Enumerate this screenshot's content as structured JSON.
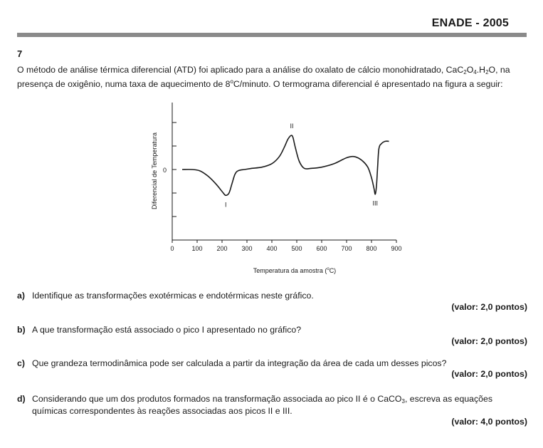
{
  "header": {
    "title": "ENADE - 2005"
  },
  "question": {
    "number": "7",
    "intro_part1": "O método de análise térmica diferencial (ATD) foi aplicado para a análise do oxalato de cálcio monohidratado, CaC",
    "intro_formula_sub1": "2",
    "intro_formula_mid1": "O",
    "intro_formula_sub2": "4",
    "intro_formula_mid2": ".H",
    "intro_formula_sub3": "2",
    "intro_formula_mid3": "O, na",
    "intro_line2_a": "presença de oxigênio, numa taxa de aquecimento de 8",
    "intro_degree": "o",
    "intro_line2_b": "C/minuto. O termograma diferencial é apresentado na figura a seguir:"
  },
  "chart_data": {
    "type": "line",
    "title": "",
    "xlabel_prefix": "Temperatura da amostra (",
    "xlabel_degree": "o",
    "xlabel_suffix": "C)",
    "ylabel": "Diferencial de Temperatura",
    "xlim": [
      0,
      900
    ],
    "x_ticks": [
      "0",
      "100",
      "200",
      "300",
      "400",
      "500",
      "600",
      "700",
      "800",
      "900"
    ],
    "y_zero_label": "0",
    "peak_labels": [
      {
        "label": "I",
        "x": 215,
        "y": -1.1
      },
      {
        "label": "II",
        "x": 480,
        "y": 1.45
      },
      {
        "label": "III",
        "x": 815,
        "y": -1.05
      }
    ],
    "series": [
      {
        "x": [
          40,
          80,
          110,
          140,
          170,
          190,
          205,
          215,
          228,
          240,
          252,
          265,
          290,
          320,
          360,
          400,
          430,
          450,
          465,
          478,
          485,
          495,
          510,
          530,
          560,
          600,
          650,
          700,
          730,
          760,
          785,
          800,
          810,
          815,
          820,
          825,
          830,
          840,
          855,
          870
        ],
        "y": [
          0,
          0,
          -0.05,
          -0.25,
          -0.55,
          -0.8,
          -1.0,
          -1.1,
          -1.0,
          -0.6,
          -0.2,
          -0.05,
          0,
          0.05,
          0.1,
          0.25,
          0.55,
          0.95,
          1.3,
          1.45,
          1.35,
          0.9,
          0.35,
          0.05,
          0.05,
          0.1,
          0.25,
          0.5,
          0.55,
          0.4,
          0.1,
          -0.35,
          -0.8,
          -1.05,
          -0.7,
          0.2,
          0.9,
          1.1,
          1.2,
          1.2
        ]
      }
    ]
  },
  "items": [
    {
      "letter": "a)",
      "text": "Identifique as transformações exotérmicas e endotérmicas neste gráfico.",
      "value": "(valor: 2,0 pontos)"
    },
    {
      "letter": "b)",
      "text": "A que transformação está associado o pico I apresentado no gráfico?",
      "value": "(valor: 2,0 pontos)"
    },
    {
      "letter": "c)",
      "text": "Que grandeza termodinâmica pode ser calculada a partir da integração da área de cada um desses picos?",
      "value": "(valor: 2,0 pontos)"
    },
    {
      "letter": "d)",
      "text_a": "Considerando que um dos produtos formados na transformação associada ao pico II é o CaCO",
      "text_sub": "3",
      "text_b": ", escreva as equações",
      "text_line2": "químicas correspondentes às reações associadas aos picos II e III.",
      "value": "(valor: 4,0 pontos)"
    }
  ]
}
